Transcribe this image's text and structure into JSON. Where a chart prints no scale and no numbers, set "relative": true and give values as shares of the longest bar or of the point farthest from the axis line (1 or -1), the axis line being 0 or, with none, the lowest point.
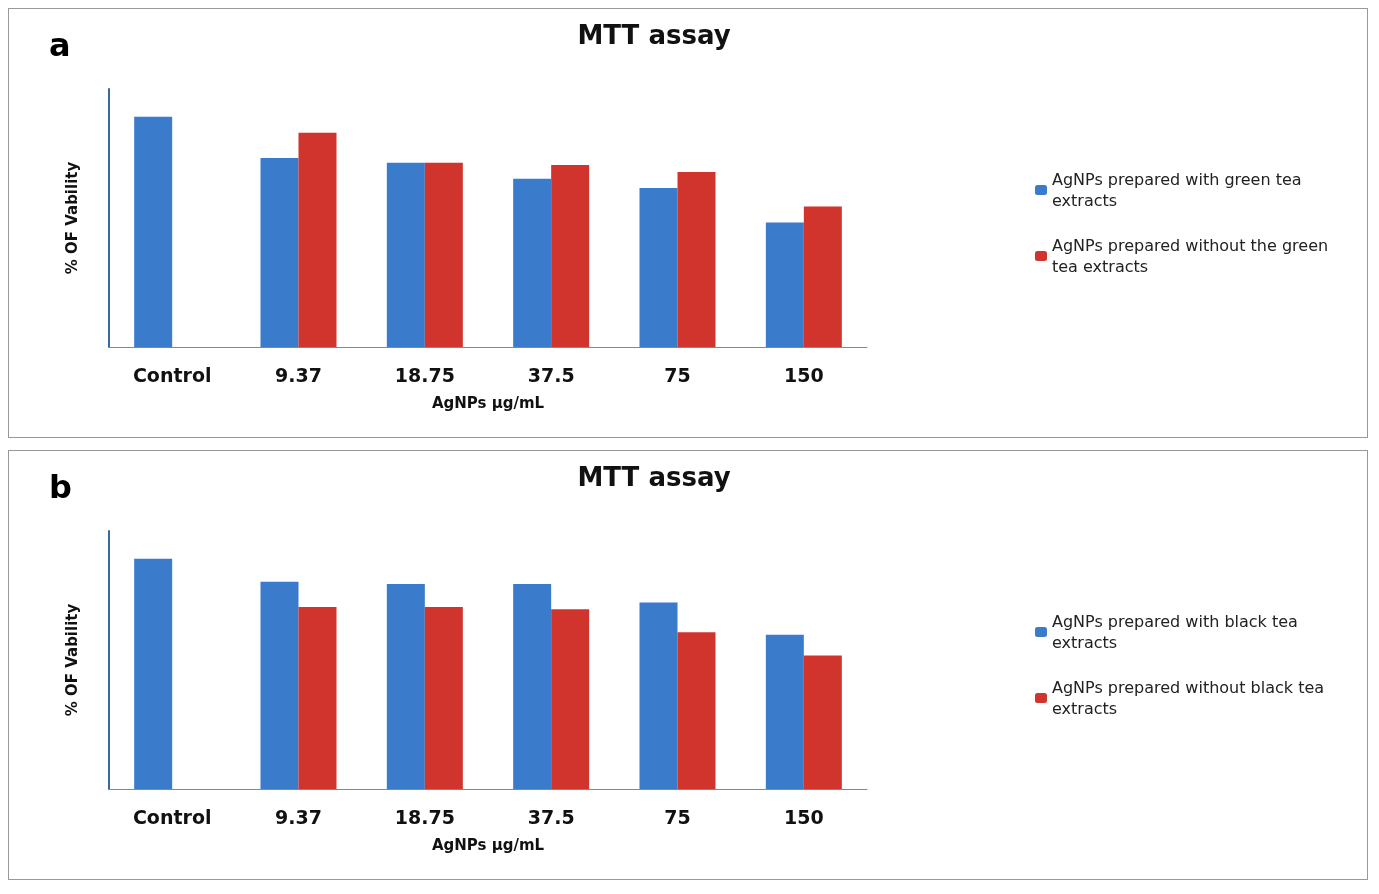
{
  "chart_data": [
    {
      "type": "bar",
      "title": "MTT assay",
      "annotations": [
        "a"
      ],
      "xlabel": "AgNPs µg/mL",
      "ylabel": "% OF Vability",
      "relative": true,
      "legend": "right",
      "grid": false,
      "categories": [
        "Control",
        "9.37",
        "18.75",
        "37.5",
        "75",
        "150"
      ],
      "series": [
        {
          "name": "AgNPs prepared with green tea extracts",
          "color": "#3b7bcc",
          "values": [
            1,
            0.82,
            0.8,
            0.73,
            0.69,
            0.54
          ]
        },
        {
          "name": "AgNPs prepared without the green tea extracts",
          "color": "#d0342c",
          "values": [
            null,
            0.93,
            0.8,
            0.79,
            0.76,
            0.61
          ]
        }
      ]
    },
    {
      "type": "bar",
      "title": "MTT assay",
      "annotations": [
        "b"
      ],
      "xlabel": "AgNPs µg/mL",
      "ylabel": "% OF Vability",
      "relative": true,
      "legend": "right",
      "grid": false,
      "categories": [
        "Control",
        "9.37",
        "18.75",
        "37.5",
        "75",
        "150"
      ],
      "series": [
        {
          "name": "AgNPs prepared with black tea extracts",
          "color": "#3b7bcc",
          "values": [
            1,
            0.9,
            0.89,
            0.89,
            0.81,
            0.67
          ]
        },
        {
          "name": "AgNPs prepared without black tea extracts",
          "color": "#d0342c",
          "values": [
            null,
            0.79,
            0.79,
            0.78,
            0.68,
            0.58
          ]
        }
      ]
    }
  ]
}
